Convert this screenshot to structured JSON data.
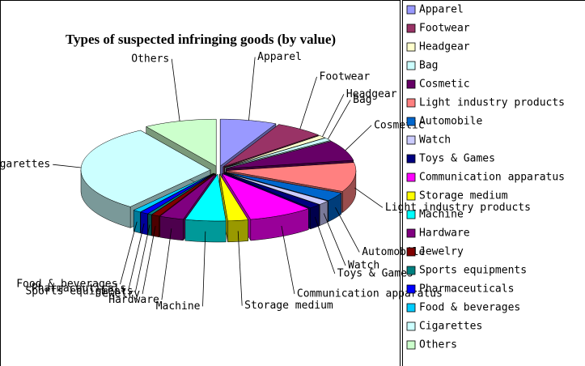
{
  "chart_data": {
    "type": "pie",
    "title": "Types of suspected infringing goods (by value)",
    "categories": [
      "Apparel",
      "Footwear",
      "Headgear",
      "Bag",
      "Cosmetic",
      "Light industry products",
      "Automobile",
      "Watch",
      "Toys & Games",
      "Communication apparatus",
      "Storage medium",
      "Machine",
      "Hardware",
      "Jewelry",
      "Sports equipments",
      "Pharmaceuticals",
      "Food & beverages",
      "Cigarettes",
      "Others"
    ],
    "values": [
      7,
      6,
      1,
      1,
      7,
      10,
      3,
      1.5,
      1.5,
      8,
      2.5,
      5,
      3,
      1,
      0.5,
      1,
      1,
      30,
      9
    ],
    "colors": [
      "#9999ff",
      "#993366",
      "#ffffcc",
      "#ccffff",
      "#660066",
      "#ff8080",
      "#0066cc",
      "#ccccff",
      "#000080",
      "#ff00ff",
      "#ffff00",
      "#00ffff",
      "#800080",
      "#800000",
      "#008080",
      "#0000ff",
      "#00ccff",
      "#ccffff",
      "#ccffcc"
    ],
    "legend": "right"
  }
}
